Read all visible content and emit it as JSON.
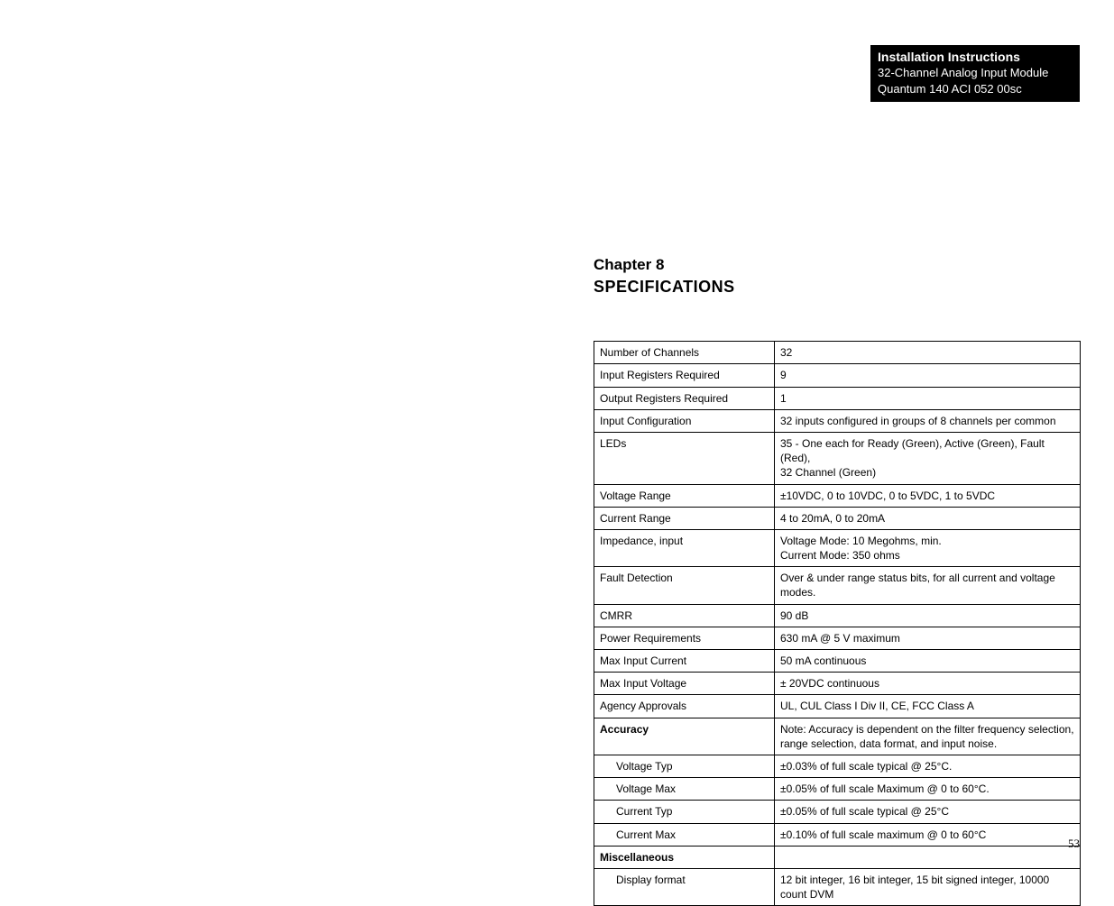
{
  "header": {
    "title": "Installation Instructions",
    "line2": "32-Channel Analog Input Module",
    "line3": "Quantum 140 ACI 052 00sc"
  },
  "chapter": "Chapter 8",
  "section_title": "SPECIFICATIONS",
  "table": {
    "colors": {
      "border": "#000000",
      "text": "#000000",
      "background": "#ffffff",
      "header_bg": "#000000",
      "header_text": "#ffffff"
    },
    "font_size": 12,
    "rows": [
      {
        "label": "Number of Channels",
        "value": "32"
      },
      {
        "label": "Input Registers Required",
        "value": "9"
      },
      {
        "label": "Output Registers Required",
        "value": "1"
      },
      {
        "label": "Input Configuration",
        "value": "32 inputs configured in groups of 8 channels per common"
      },
      {
        "label": "LEDs",
        "value": "35 - One each for Ready (Green), Active (Green), Fault (Red),\n        32 Channel (Green)"
      },
      {
        "label": "Voltage Range",
        "value": "±10VDC, 0 to 10VDC, 0 to 5VDC, 1 to 5VDC"
      },
      {
        "label": "Current Range",
        "value": "4 to 20mA, 0 to 20mA"
      },
      {
        "label": "Impedance, input",
        "value": "Voltage Mode: 10 Megohms, min.\nCurrent Mode:  350 ohms"
      },
      {
        "label": "Fault Detection",
        "value": "Over & under range status bits, for all current and voltage modes."
      },
      {
        "label": "CMRR",
        "value": "90 dB"
      },
      {
        "label": "Power Requirements",
        "value": "630 mA @ 5 V maximum"
      },
      {
        "label": "Max Input Current",
        "value": "50 mA continuous"
      },
      {
        "label": "Max Input Voltage",
        "value": "± 20VDC continuous"
      },
      {
        "label": "Agency Approvals",
        "value": "UL, CUL Class I Div II, CE, FCC Class A"
      },
      {
        "label": "Accuracy",
        "value": "Note:  Accuracy is dependent on the filter frequency selection, range selection, data format, and input noise.",
        "label_bold": true
      },
      {
        "label": "Voltage Typ",
        "value": "±0.03% of full scale typical @ 25°C.",
        "indent": true
      },
      {
        "label": "Voltage Max",
        "value": "±0.05% of full scale Maximum @ 0 to 60°C.",
        "indent": true
      },
      {
        "label": "Current Typ",
        "value": "±0.05% of full scale typical @ 25°C",
        "indent": true
      },
      {
        "label": "Current Max",
        "value": "±0.10% of full scale maximum @ 0 to 60°C",
        "indent": true
      },
      {
        "label": "Miscellaneous",
        "value": "",
        "label_bold": true
      },
      {
        "label": "Display format",
        "value": "12 bit integer, 16 bit integer, 15 bit signed integer, 10000 count DVM",
        "indent": true
      }
    ]
  },
  "page_number": "53"
}
